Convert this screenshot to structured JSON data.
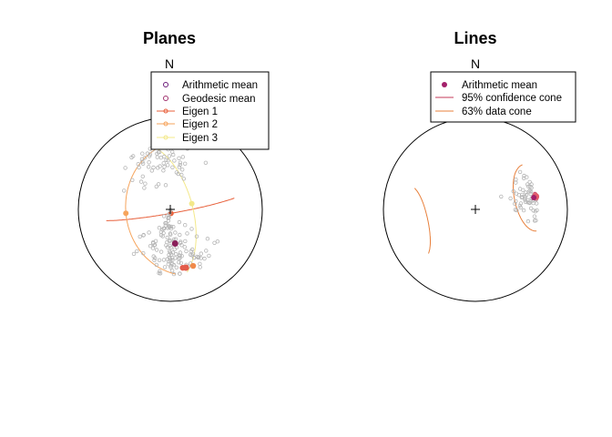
{
  "chart_data": [
    {
      "type": "scatter",
      "title": "Planes",
      "north_label": "N",
      "projection": "equal-area stereonet (lower hemisphere)",
      "legend": {
        "placement": "top-right",
        "entries": [
          {
            "label": "Arithmetic mean",
            "symbol": "point",
            "color": "#6a1b7a"
          },
          {
            "label": "Geodesic mean",
            "symbol": "point",
            "color": "#a0306e"
          },
          {
            "label": "Eigen 1",
            "symbol": "line-point",
            "color": "#e8613c"
          },
          {
            "label": "Eigen 2",
            "symbol": "line-point",
            "color": "#f6a45c"
          },
          {
            "label": "Eigen 3",
            "symbol": "line-point",
            "color": "#fcf3a8"
          }
        ]
      },
      "poles_count": 200,
      "mean_markers": [
        {
          "label": "Arithmetic mean",
          "trend_deg": 172,
          "plunge_deg": 46,
          "color": "#8a1f5a"
        },
        {
          "label": "Geodesic mean",
          "trend_deg": 165,
          "plunge_deg": 8,
          "color": "#e35b4a"
        }
      ],
      "eigen_planes": [
        {
          "label": "Eigen 1",
          "dip_direction_deg": 170,
          "dip_deg": 85,
          "color": "#e8613c"
        },
        {
          "label": "Eigen 2",
          "dip_direction_deg": 265,
          "dip_deg": 32,
          "color": "#f6a45c"
        },
        {
          "label": "Eigen 3",
          "dip_direction_deg": 75,
          "dip_deg": 62,
          "color": "#fcf3a8"
        }
      ]
    },
    {
      "type": "scatter",
      "title": "Lines",
      "north_label": "N",
      "projection": "equal-area stereonet (lower hemisphere)",
      "legend": {
        "placement": "top-right",
        "entries": [
          {
            "label": "Arithmetic mean",
            "symbol": "point",
            "color": "#a3206a"
          },
          {
            "label": "95% confidence cone",
            "symbol": "line",
            "color": "#c63a5a"
          },
          {
            "label": "63% data cone",
            "symbol": "line",
            "color": "#e8803c"
          }
        ]
      },
      "lines_count": 60,
      "mean": {
        "trend_deg": 78,
        "plunge_deg": 6,
        "color": "#a3206a"
      },
      "confidence_cone_95_deg": 4,
      "data_cone_63_deg": 32
    }
  ]
}
